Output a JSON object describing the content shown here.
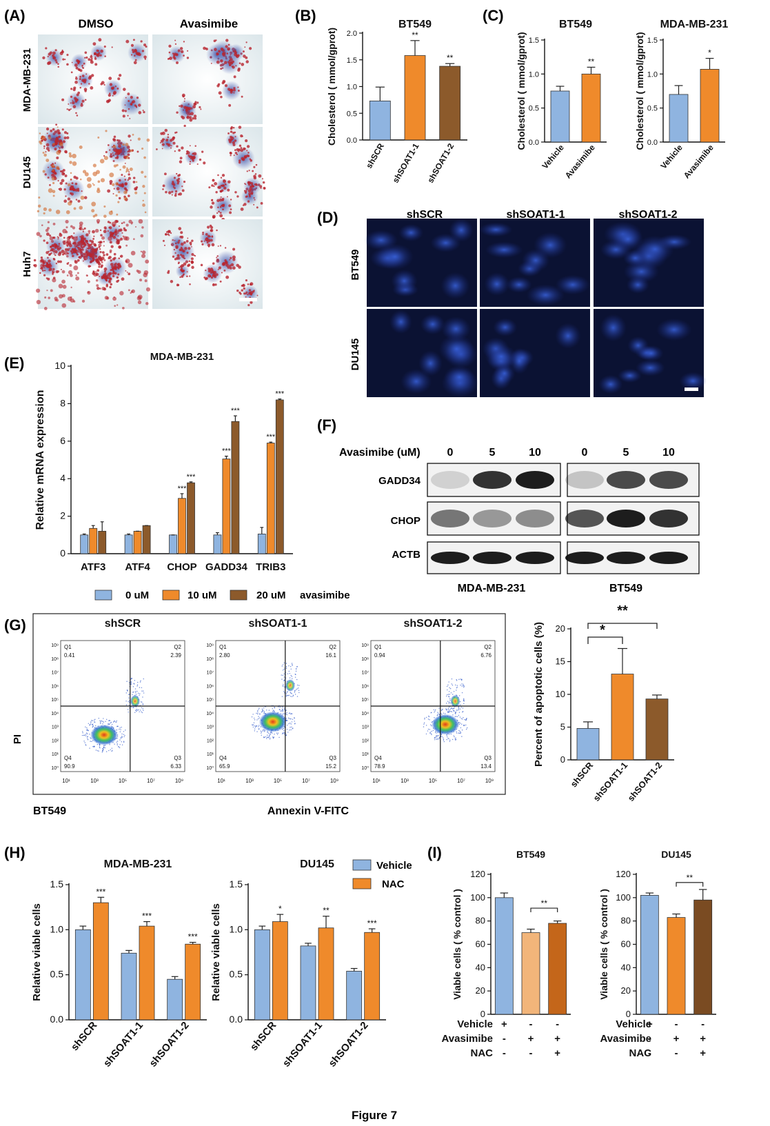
{
  "figure_label": "Figure 7",
  "colors": {
    "blue": "#8fb4e0",
    "orange": "#ef8a2b",
    "brown": "#8c5a2b",
    "light_orange": "#f2b57a",
    "dark_orange": "#c4661a",
    "dark_brown": "#7a4b22",
    "axis": "#111111",
    "micro_blue_bg": "#0a0f2e",
    "oil_red": "#b8252f"
  },
  "panel_A": {
    "label": "(A)",
    "cols": [
      "DMSO",
      "Avasimibe"
    ],
    "rows": [
      "MDA-MB-231",
      "DU145",
      "Huh7"
    ]
  },
  "panel_B": {
    "label": "(B)",
    "stars": [
      "",
      "**",
      "**"
    ]
  },
  "panel_C": {
    "label": "(C)",
    "stars": [
      [
        "",
        "**"
      ],
      [
        "",
        "*"
      ]
    ]
  },
  "panel_D": {
    "label": "(D)",
    "cols": [
      "shSCR",
      "shSOAT1-1",
      "shSOAT1-2"
    ],
    "rows": [
      "BT549",
      "DU145"
    ]
  },
  "panel_E": {
    "label": "(E)",
    "legend": [
      "0 uM",
      "10 uM",
      "20 uM"
    ],
    "legend_suffix": "avasimibe",
    "stars": [
      [
        "",
        "",
        ""
      ],
      [
        "",
        "",
        ""
      ],
      [
        "",
        "***",
        "***"
      ],
      [
        "",
        "***",
        "***"
      ],
      [
        "",
        "***",
        "***"
      ]
    ]
  },
  "panel_F": {
    "label": "(F)",
    "treatment_label": "Avasimibe (uM)",
    "doses": [
      "0",
      "5",
      "10",
      "0",
      "5",
      "10"
    ],
    "proteins": [
      "GADD34",
      "CHOP",
      "ACTB"
    ],
    "cell_lines": [
      "MDA-MB-231",
      "BT549"
    ]
  },
  "panel_G": {
    "label": "(G)",
    "plots": [
      {
        "title": "shSCR",
        "q1": "0.41",
        "q2": "2.39",
        "q3": "6.33",
        "q4": "90.9"
      },
      {
        "title": "shSOAT1-1",
        "q1": "2.80",
        "q2": "16.1",
        "q3": "15.2",
        "q4": "65.9"
      },
      {
        "title": "shSOAT1-2",
        "q1": "0.94",
        "q2": "6.76",
        "q3": "13.4",
        "q4": "78.9"
      }
    ],
    "quadrant_names": [
      "Q1",
      "Q2",
      "Q3",
      "Q4"
    ],
    "y_axis_label": "PI",
    "x_axis_label": "Annexin V-FITC",
    "cell_line": "BT549",
    "x_ticks": [
      "10¹",
      "10³",
      "10⁵",
      "10⁷",
      "10⁹"
    ],
    "y_ticks": [
      "10⁹",
      "10⁸",
      "10⁷",
      "10⁶",
      "10⁵",
      "10⁴",
      "10³",
      "10²",
      "10¹",
      "10⁰"
    ],
    "bar_stars": [
      "*",
      "**"
    ]
  },
  "panel_H": {
    "label": "(H)",
    "legend": [
      "Vehicle",
      "NAC"
    ],
    "stars": [
      [
        "***",
        "***",
        "***"
      ],
      [
        "*",
        "**",
        "***"
      ]
    ]
  },
  "panel_I": {
    "label": "(I)",
    "stars": [
      "**",
      "**"
    ],
    "conditions": [
      {
        "name": "Vehicle",
        "values": [
          "+",
          "-",
          "-"
        ]
      },
      {
        "name": "Avasimibe",
        "values": [
          "-",
          "+",
          "+"
        ]
      },
      {
        "name": "NAC",
        "values": [
          "-",
          "-",
          "+"
        ]
      }
    ]
  },
  "chart_data": [
    {
      "id": "B",
      "type": "bar",
      "title": "BT549",
      "ylabel": "Cholesterol ( mmol/gprot)",
      "ylim": [
        0,
        2.0
      ],
      "yticks": [
        "0.0",
        "0.5",
        "1.0",
        "1.5",
        "2.0"
      ],
      "categories": [
        "shSCR",
        "shSOAT1-1",
        "shSOAT1-2"
      ],
      "values": [
        0.73,
        1.58,
        1.38
      ],
      "errors": [
        0.26,
        0.28,
        0.05
      ]
    },
    {
      "id": "C1",
      "type": "bar",
      "title": "BT549",
      "ylabel": "Cholesterol ( mmol/gprot)",
      "ylim": [
        0,
        1.5
      ],
      "yticks": [
        "0.0",
        "0.5",
        "1.0",
        "1.5"
      ],
      "categories": [
        "Vehicle",
        "Avasimibe"
      ],
      "values": [
        0.75,
        1.0
      ],
      "errors": [
        0.07,
        0.1
      ]
    },
    {
      "id": "C2",
      "type": "bar",
      "title": "MDA-MB-231",
      "ylabel": "Cholesterol ( mmol/gprot)",
      "ylim": [
        0,
        1.5
      ],
      "yticks": [
        "0.0",
        "0.5",
        "1.0",
        "1.5"
      ],
      "categories": [
        "Vehicle",
        "Avasimibe"
      ],
      "values": [
        0.7,
        1.07
      ],
      "errors": [
        0.13,
        0.16
      ]
    },
    {
      "id": "E",
      "type": "bar",
      "title": "MDA-MB-231",
      "ylabel": "Relative mRNA expression",
      "ylim": [
        0,
        10
      ],
      "yticks": [
        "0",
        "2",
        "4",
        "6",
        "8",
        "10"
      ],
      "categories": [
        "ATF3",
        "ATF4",
        "CHOP",
        "GADD34",
        "TRIB3"
      ],
      "series": [
        {
          "name": "0 uM",
          "values": [
            1.0,
            1.0,
            1.0,
            1.0,
            1.05
          ],
          "errors": [
            0.05,
            0.05,
            0.0,
            0.12,
            0.35
          ]
        },
        {
          "name": "10 uM",
          "values": [
            1.35,
            1.2,
            2.95,
            5.05,
            5.9
          ],
          "errors": [
            0.15,
            0.0,
            0.25,
            0.15,
            0.05
          ]
        },
        {
          "name": "20 uM",
          "values": [
            1.2,
            1.5,
            3.78,
            7.05,
            8.2
          ],
          "errors": [
            0.5,
            0.0,
            0.05,
            0.3,
            0.05
          ]
        }
      ]
    },
    {
      "id": "G-bar",
      "type": "bar",
      "ylabel": "Percent of apoptotic cells (%)",
      "ylim": [
        0,
        20
      ],
      "yticks": [
        "0",
        "5",
        "10",
        "15",
        "20"
      ],
      "categories": [
        "shSCR",
        "shSOAT1-1",
        "shSOAT1-2"
      ],
      "values": [
        4.8,
        13.1,
        9.3
      ],
      "errors": [
        1.0,
        3.9,
        0.6
      ]
    },
    {
      "id": "H1",
      "type": "bar",
      "title": "MDA-MB-231",
      "ylabel": "Relative viable cells",
      "ylim": [
        0,
        1.5
      ],
      "yticks": [
        "0.0",
        "0.5",
        "1.0",
        "1.5"
      ],
      "categories": [
        "shSCR",
        "shSOAT1-1",
        "shSOAT1-2"
      ],
      "series": [
        {
          "name": "Vehicle",
          "values": [
            1.0,
            0.74,
            0.45
          ],
          "errors": [
            0.04,
            0.03,
            0.03
          ]
        },
        {
          "name": "NAC",
          "values": [
            1.3,
            1.04,
            0.84
          ],
          "errors": [
            0.06,
            0.05,
            0.02
          ]
        }
      ]
    },
    {
      "id": "H2",
      "type": "bar",
      "title": "DU145",
      "ylabel": "Relative viable cells",
      "ylim": [
        0,
        1.5
      ],
      "yticks": [
        "0.0",
        "0.5",
        "1.0",
        "1.5"
      ],
      "categories": [
        "shSCR",
        "shSOAT1-1",
        "shSOAT1-2"
      ],
      "series": [
        {
          "name": "Vehicle",
          "values": [
            1.0,
            0.82,
            0.54
          ],
          "errors": [
            0.04,
            0.03,
            0.03
          ]
        },
        {
          "name": "NAC",
          "values": [
            1.09,
            1.02,
            0.97
          ],
          "errors": [
            0.08,
            0.13,
            0.04
          ]
        }
      ]
    },
    {
      "id": "I1",
      "type": "bar",
      "title": "BT549",
      "ylabel": "Viable cells ( % control )",
      "ylim": [
        0,
        120
      ],
      "yticks": [
        "0",
        "20",
        "40",
        "60",
        "80",
        "100",
        "120"
      ],
      "categories": [
        "1",
        "2",
        "3"
      ],
      "values": [
        100,
        70,
        78
      ],
      "errors": [
        4,
        3,
        2
      ]
    },
    {
      "id": "I2",
      "type": "bar",
      "title": "DU145",
      "ylabel": "Viable cells ( % control )",
      "ylim": [
        0,
        120
      ],
      "yticks": [
        "0",
        "20",
        "40",
        "60",
        "80",
        "100",
        "120"
      ],
      "categories": [
        "1",
        "2",
        "3"
      ],
      "values": [
        102,
        83,
        98
      ],
      "errors": [
        2,
        3,
        9
      ]
    }
  ]
}
